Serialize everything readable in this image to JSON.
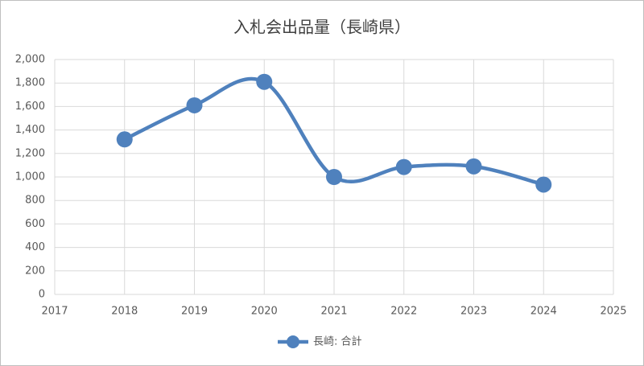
{
  "chart_data": {
    "type": "line",
    "title": "入札会出品量（長崎県）",
    "x": [
      2018,
      2019,
      2020,
      2021,
      2022,
      2023,
      2024
    ],
    "series": [
      {
        "name": "長崎: 合計",
        "color": "#4f81bd",
        "values": [
          1320,
          1610,
          1810,
          1000,
          1085,
          1090,
          935
        ]
      }
    ],
    "xlim": [
      2017,
      2025
    ],
    "xticks": [
      2017,
      2018,
      2019,
      2020,
      2021,
      2022,
      2023,
      2024,
      2025
    ],
    "ylim": [
      0,
      2000
    ],
    "yticks": [
      0,
      200,
      400,
      600,
      800,
      {
        "value": 1000,
        "label": "1,000"
      },
      {
        "value": 1200,
        "label": "1,200"
      },
      {
        "value": 1400,
        "label": "1,400"
      },
      {
        "value": 1600,
        "label": "1,600"
      },
      {
        "value": 1800,
        "label": "1,800"
      },
      {
        "value": 2000,
        "label": "2,000"
      }
    ],
    "grid": true,
    "smooth": true,
    "legend": "bottom"
  }
}
